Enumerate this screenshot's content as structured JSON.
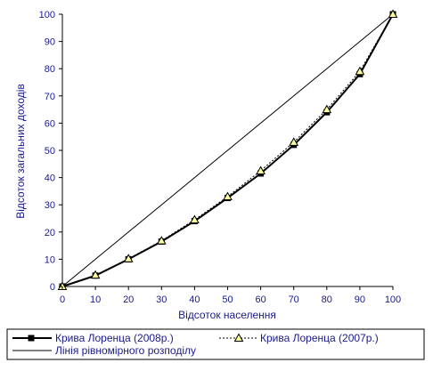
{
  "chart_data": {
    "type": "line",
    "x": [
      0,
      10,
      20,
      30,
      40,
      50,
      60,
      70,
      80,
      90,
      100
    ],
    "series": [
      {
        "name": "Крива Лоренца  (2008р.)",
        "values": [
          0,
          4,
          10,
          16.5,
          24,
          32.5,
          41.5,
          52,
          64,
          78,
          100
        ],
        "color": "#000000",
        "marker": "square",
        "dash": "solid"
      },
      {
        "name": "Крива Лоренца  (2007р.)",
        "values": [
          0,
          4.2,
          10.2,
          16.8,
          24.5,
          33,
          42.5,
          53,
          65,
          79,
          100
        ],
        "color": "#000000",
        "marker": "triangle",
        "dash": "dotted"
      },
      {
        "name": "Лінія рівномірного розподілу",
        "values": [
          0,
          10,
          20,
          30,
          40,
          50,
          60,
          70,
          80,
          90,
          100
        ],
        "color": "#000000",
        "marker": "none",
        "dash": "solid"
      }
    ],
    "xlabel": "Відсоток населення",
    "ylabel": "Відсоток загальних доходів",
    "xlim": [
      0,
      100
    ],
    "ylim": [
      0,
      100
    ],
    "xticks": [
      "0",
      "10",
      "20",
      "30",
      "40",
      "50",
      "60",
      "70",
      "80",
      "90",
      "100"
    ],
    "yticks": [
      "0",
      "10",
      "20",
      "30",
      "40",
      "50",
      "60",
      "70",
      "80",
      "90",
      "100"
    ],
    "grid": false,
    "legend": "bottom",
    "colors": {
      "text": "#1a1a8c",
      "marker_fill": "#ffff99"
    }
  }
}
